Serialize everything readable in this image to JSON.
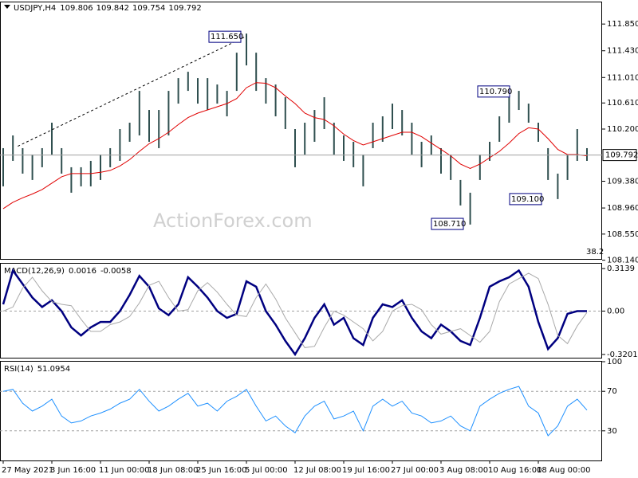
{
  "chart_data": [
    {
      "type": "ohlc",
      "symbol": "USDJPY,H4",
      "ohlc": [
        109.806,
        109.842,
        109.754,
        109.792
      ],
      "watermark": "ActionForex.com",
      "fib_label": 38.2,
      "ylim": [
        108.16,
        112.19
      ],
      "yticks": [
        {
          "value": 111.85,
          "label": "111.850"
        },
        {
          "value": 111.43,
          "label": "111.430"
        },
        {
          "value": 111.01,
          "label": "111.010"
        },
        {
          "value": 110.61,
          "label": "110.610"
        },
        {
          "value": 110.2,
          "label": "110.200"
        },
        {
          "value": 109.38,
          "label": "109.380"
        },
        {
          "value": 108.96,
          "label": "108.960"
        },
        {
          "value": 108.55,
          "label": "108.550"
        },
        {
          "value": 108.14,
          "label": "108.140"
        }
      ],
      "current": {
        "value": 109.792,
        "label": "109.792"
      },
      "high": [
        109.9,
        110.1,
        109.9,
        109.8,
        109.9,
        110.3,
        109.9,
        109.6,
        109.6,
        109.7,
        109.8,
        109.9,
        110.2,
        110.3,
        110.8,
        110.5,
        110.5,
        110.8,
        111.0,
        111.1,
        111.0,
        111.0,
        110.9,
        110.8,
        111.4,
        111.7,
        111.4,
        111.0,
        110.9,
        110.7,
        110.2,
        110.3,
        110.5,
        110.7,
        110.3,
        110.1,
        110.0,
        109.8,
        110.3,
        110.4,
        110.6,
        110.5,
        110.3,
        110.0,
        110.1,
        109.9,
        109.8,
        109.4,
        109.2,
        109.8,
        110.0,
        110.4,
        110.7,
        110.8,
        110.6,
        110.3,
        109.9,
        109.5,
        109.8,
        110.2,
        109.9
      ],
      "low": [
        109.3,
        109.7,
        109.5,
        109.4,
        109.6,
        109.8,
        109.5,
        109.2,
        109.3,
        109.3,
        109.4,
        109.6,
        109.7,
        110.0,
        110.1,
        110.0,
        109.9,
        110.1,
        110.6,
        110.8,
        110.6,
        110.5,
        110.6,
        110.4,
        110.8,
        111.2,
        110.8,
        110.6,
        110.4,
        110.2,
        109.6,
        109.8,
        110.0,
        110.2,
        109.8,
        109.7,
        109.6,
        109.3,
        109.9,
        110.0,
        110.2,
        110.1,
        109.8,
        109.6,
        109.8,
        109.5,
        109.4,
        109.0,
        108.7,
        109.4,
        109.7,
        110.0,
        110.3,
        110.5,
        110.3,
        110.0,
        109.4,
        109.1,
        109.4,
        109.7,
        109.7
      ],
      "ma": [
        108.95,
        109.05,
        109.12,
        109.18,
        109.25,
        109.35,
        109.45,
        109.5,
        109.5,
        109.5,
        109.52,
        109.55,
        109.62,
        109.72,
        109.85,
        109.97,
        110.05,
        110.15,
        110.27,
        110.38,
        110.45,
        110.5,
        110.55,
        110.6,
        110.68,
        110.85,
        110.93,
        110.92,
        110.85,
        110.72,
        110.6,
        110.45,
        110.38,
        110.35,
        110.25,
        110.12,
        110.02,
        109.95,
        110.0,
        110.05,
        110.1,
        110.15,
        110.15,
        110.08,
        109.98,
        109.88,
        109.78,
        109.65,
        109.58,
        109.65,
        109.75,
        109.85,
        109.98,
        110.13,
        110.22,
        110.2,
        110.05,
        109.88,
        109.8,
        109.8,
        109.78
      ],
      "ma_color": "#e00000",
      "bar_color": "#2f4f4f",
      "trendline": [
        109.93,
        111.66
      ],
      "annotations": [
        {
          "value": 111.65,
          "label": "111.650"
        },
        {
          "value": 110.79,
          "label": "110.790"
        },
        {
          "value": 108.71,
          "label": "108.710"
        },
        {
          "value": 109.1,
          "label": "109.100"
        }
      ]
    },
    {
      "type": "line",
      "title": "MACD(12,26,9)",
      "readings": [
        0.0016,
        -0.0058
      ],
      "ylim": [
        -0.344,
        0.35
      ],
      "yticks": [
        0.3139,
        {
          "value": 0,
          "label": "0.00"
        },
        -0.3201
      ],
      "zero_line": true,
      "series": [
        {
          "color": "#000080",
          "values": [
            0.05,
            0.3,
            0.2,
            0.1,
            0.03,
            0.08,
            0.0,
            -0.12,
            -0.18,
            -0.12,
            -0.08,
            -0.08,
            0.0,
            0.12,
            0.26,
            0.18,
            0.02,
            -0.03,
            0.05,
            0.25,
            0.18,
            0.1,
            0.0,
            -0.05,
            -0.02,
            0.22,
            0.18,
            0.0,
            -0.1,
            -0.22,
            -0.32,
            -0.2,
            -0.05,
            0.05,
            -0.1,
            -0.05,
            -0.2,
            -0.25,
            -0.05,
            0.05,
            0.03,
            0.08,
            -0.05,
            -0.15,
            -0.2,
            -0.1,
            -0.15,
            -0.22,
            -0.25,
            -0.05,
            0.18,
            0.22,
            0.25,
            0.3,
            0.18,
            -0.08,
            -0.28,
            -0.2,
            -0.02,
            0.0,
            0.0
          ]
        },
        {
          "color": "#a9a9a9",
          "values": [
            0.0,
            0.03,
            0.17,
            0.25,
            0.15,
            0.07,
            0.05,
            0.04,
            -0.06,
            -0.15,
            -0.15,
            -0.1,
            -0.08,
            -0.04,
            0.06,
            0.19,
            0.22,
            0.1,
            0.0,
            0.01,
            0.15,
            0.21,
            0.14,
            0.05,
            -0.03,
            -0.04,
            0.1,
            0.2,
            0.09,
            -0.05,
            -0.16,
            -0.27,
            -0.26,
            -0.12,
            0.0,
            -0.03,
            -0.08,
            -0.13,
            -0.22,
            -0.15,
            0.0,
            0.04,
            0.05,
            0.01,
            -0.1,
            -0.17,
            -0.15,
            -0.13,
            -0.18,
            -0.23,
            -0.15,
            0.07,
            0.2,
            0.24,
            0.28,
            0.24,
            0.05,
            -0.18,
            -0.24,
            -0.11,
            -0.01
          ]
        }
      ]
    },
    {
      "type": "line",
      "title": "RSI(14)",
      "readings": [
        51.0954
      ],
      "ylim": [
        0,
        100
      ],
      "yticks": [
        100,
        70,
        30
      ],
      "levels": [
        70,
        30
      ],
      "series": [
        {
          "color": "#1e90ff",
          "values": [
            70,
            72,
            58,
            50,
            55,
            62,
            45,
            38,
            40,
            45,
            48,
            52,
            58,
            62,
            72,
            60,
            50,
            55,
            62,
            68,
            55,
            58,
            50,
            60,
            65,
            72,
            55,
            40,
            45,
            35,
            28,
            45,
            55,
            60,
            42,
            45,
            50,
            30,
            55,
            62,
            55,
            60,
            48,
            45,
            38,
            40,
            45,
            35,
            30,
            55,
            62,
            68,
            72,
            75,
            55,
            48,
            25,
            35,
            55,
            62,
            51
          ]
        }
      ],
      "categories": [
        "27 May 2021",
        null,
        null,
        null,
        null,
        "3 Jun 16:00",
        null,
        null,
        null,
        null,
        "11 Jun 00:00",
        null,
        null,
        null,
        null,
        "18 Jun 08:00",
        null,
        null,
        null,
        null,
        "25 Jun 16:00",
        null,
        null,
        null,
        null,
        "5 Jul 00:00",
        null,
        null,
        null,
        null,
        "12 Jul 08:00",
        null,
        null,
        null,
        null,
        "19 Jul 16:00",
        null,
        null,
        null,
        null,
        "27 Jul 00:00",
        null,
        null,
        null,
        null,
        "3 Aug 08:00",
        null,
        null,
        null,
        null,
        "10 Aug 16:00",
        null,
        null,
        null,
        null,
        "18 Aug 00:00",
        null,
        null,
        null,
        null,
        null
      ]
    }
  ]
}
